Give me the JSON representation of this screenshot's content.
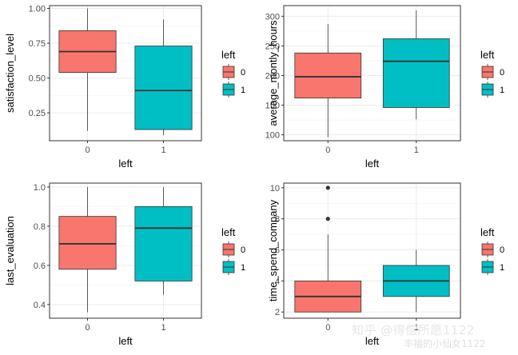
{
  "chart_data": [
    {
      "type": "boxplot",
      "xlabel": "left",
      "ylabel": "satisfaction_level",
      "categories": [
        "0",
        "1"
      ],
      "ylim": [
        0.05,
        1.02
      ],
      "yticks": [
        0.25,
        0.5,
        0.75,
        1.0
      ],
      "ytick_labels": [
        "0.25",
        "0.50",
        "0.75",
        "1.00"
      ],
      "boxes": [
        {
          "category": "0",
          "min": 0.12,
          "q1": 0.54,
          "median": 0.69,
          "q3": 0.84,
          "max": 1.0,
          "outliers": []
        },
        {
          "category": "1",
          "min": 0.09,
          "q1": 0.13,
          "median": 0.41,
          "q3": 0.73,
          "max": 0.92,
          "outliers": []
        }
      ],
      "legend": {
        "title": "left",
        "items": [
          "0",
          "1"
        ],
        "position": "right"
      }
    },
    {
      "type": "boxplot",
      "xlabel": "left",
      "ylabel": "average_montly_hours",
      "categories": [
        "0",
        "1"
      ],
      "ylim": [
        90,
        318
      ],
      "yticks": [
        100,
        150,
        200,
        250,
        300
      ],
      "ytick_labels": [
        "100",
        "150",
        "200",
        "250",
        "300"
      ],
      "boxes": [
        {
          "category": "0",
          "min": 96,
          "q1": 162,
          "median": 198,
          "q3": 238,
          "max": 287,
          "outliers": []
        },
        {
          "category": "1",
          "min": 126,
          "q1": 146,
          "median": 224,
          "q3": 262,
          "max": 310,
          "outliers": []
        }
      ],
      "legend": {
        "title": "left",
        "items": [
          "0",
          "1"
        ],
        "position": "right"
      }
    },
    {
      "type": "boxplot",
      "xlabel": "left",
      "ylabel": "last_evaluation",
      "categories": [
        "0",
        "1"
      ],
      "ylim": [
        0.33,
        1.02
      ],
      "yticks": [
        0.4,
        0.6,
        0.8,
        1.0
      ],
      "ytick_labels": [
        "0.4",
        "0.6",
        "0.8",
        "1.0"
      ],
      "boxes": [
        {
          "category": "0",
          "min": 0.36,
          "q1": 0.58,
          "median": 0.71,
          "q3": 0.85,
          "max": 1.0,
          "outliers": []
        },
        {
          "category": "1",
          "min": 0.45,
          "q1": 0.52,
          "median": 0.79,
          "q3": 0.9,
          "max": 1.0,
          "outliers": []
        }
      ],
      "legend": {
        "title": "left",
        "items": [
          "0",
          "1"
        ],
        "position": "right"
      }
    },
    {
      "type": "boxplot",
      "xlabel": "left",
      "ylabel": "time_spend_company",
      "categories": [
        "0",
        "1"
      ],
      "ylim": [
        1.6,
        10.3
      ],
      "yticks": [
        2,
        4,
        6,
        8,
        10
      ],
      "ytick_labels": [
        "2",
        "4",
        "6",
        "8",
        "10"
      ],
      "boxes": [
        {
          "category": "0",
          "min": 2,
          "q1": 2,
          "median": 3,
          "q3": 4,
          "max": 7,
          "outliers": [
            8,
            10
          ]
        },
        {
          "category": "1",
          "min": 2,
          "q1": 3,
          "median": 4,
          "q3": 5,
          "max": 6,
          "outliers": []
        }
      ],
      "legend": {
        "title": "left",
        "items": [
          "0",
          "1"
        ],
        "position": "right"
      }
    }
  ],
  "colors": {
    "group0": "#F8766D",
    "group1": "#00BFC4",
    "panel_border": "#333333",
    "grid": "#ebebeb"
  },
  "watermark": {
    "line1": "知乎 @得偿所愿1122",
    "line2": "丰福的小仙女1122"
  }
}
